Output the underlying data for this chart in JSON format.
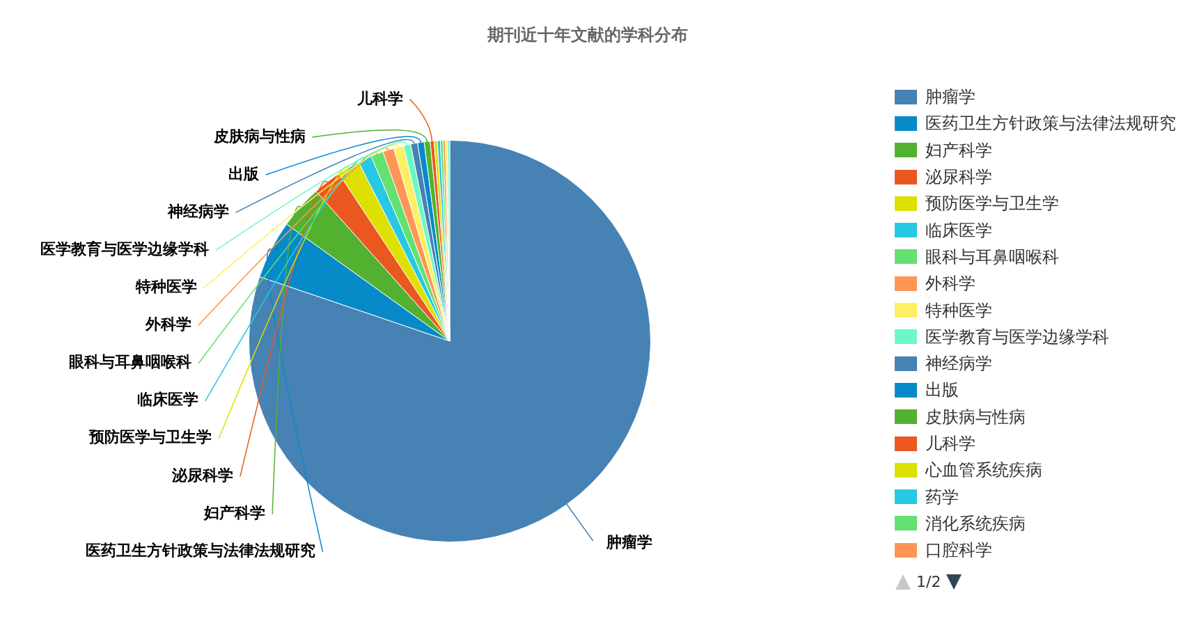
{
  "chart_data": {
    "type": "pie",
    "title": "期刊近十年文献的学科分布",
    "categories": [
      "肿瘤学",
      "医药卫生方针政策与法律法规研究",
      "妇产科学",
      "泌尿科学",
      "预防医学与卫生学",
      "临床医学",
      "眼科与耳鼻咽喉科",
      "外科学",
      "特种医学",
      "医学教育与医学边缘学科",
      "神经病学",
      "出版",
      "皮肤病与性病",
      "儿科学",
      "心血管系统疾病",
      "药学",
      "消化系统疾病",
      "口腔科学",
      null,
      null
    ],
    "values": [
      80.2,
      4.7,
      3.5,
      2.3,
      1.8,
      1.1,
      1.0,
      0.9,
      0.8,
      0.58,
      0.55,
      0.53,
      0.48,
      0.31,
      0.26,
      0.24,
      0.21,
      0.19,
      0.18,
      0.17
    ],
    "colors": [
      "#4682b4",
      "#078ac8",
      "#52b230",
      "#eb581f",
      "#dde000",
      "#26c8e2",
      "#64e170",
      "#ff9656",
      "#ffef62",
      "#6bf8c5",
      "#4682b4",
      "#078ac8",
      "#52b230",
      "#eb581f",
      "#dde000",
      "#26c8e2",
      "#64e170",
      "#ff9656",
      "#ffef62",
      "#6bf8c5"
    ],
    "legend": "right",
    "annotations": [
      "1/2"
    ]
  }
}
